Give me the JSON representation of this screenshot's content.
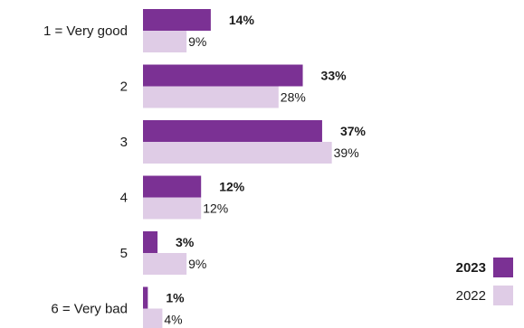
{
  "chart_data": {
    "type": "bar",
    "orientation": "horizontal",
    "categories": [
      "1 = Very good",
      "2",
      "3",
      "4",
      "5",
      "6 = Very bad"
    ],
    "series": [
      {
        "name": "2023",
        "values": [
          14,
          33,
          37,
          12,
          3,
          1
        ],
        "labels": [
          "14%",
          "33%",
          "37%",
          "12%",
          "3%",
          "1%"
        ],
        "color": "#7b3194"
      },
      {
        "name": "2022",
        "values": [
          9,
          28,
          39,
          12,
          9,
          4
        ],
        "labels": [
          "9%",
          "28%",
          "39%",
          "12%",
          "9%",
          "4%"
        ],
        "color": "#dfcce6"
      }
    ],
    "xlim": [
      0,
      42
    ],
    "grid": false,
    "legend_position": "bottom-right"
  }
}
